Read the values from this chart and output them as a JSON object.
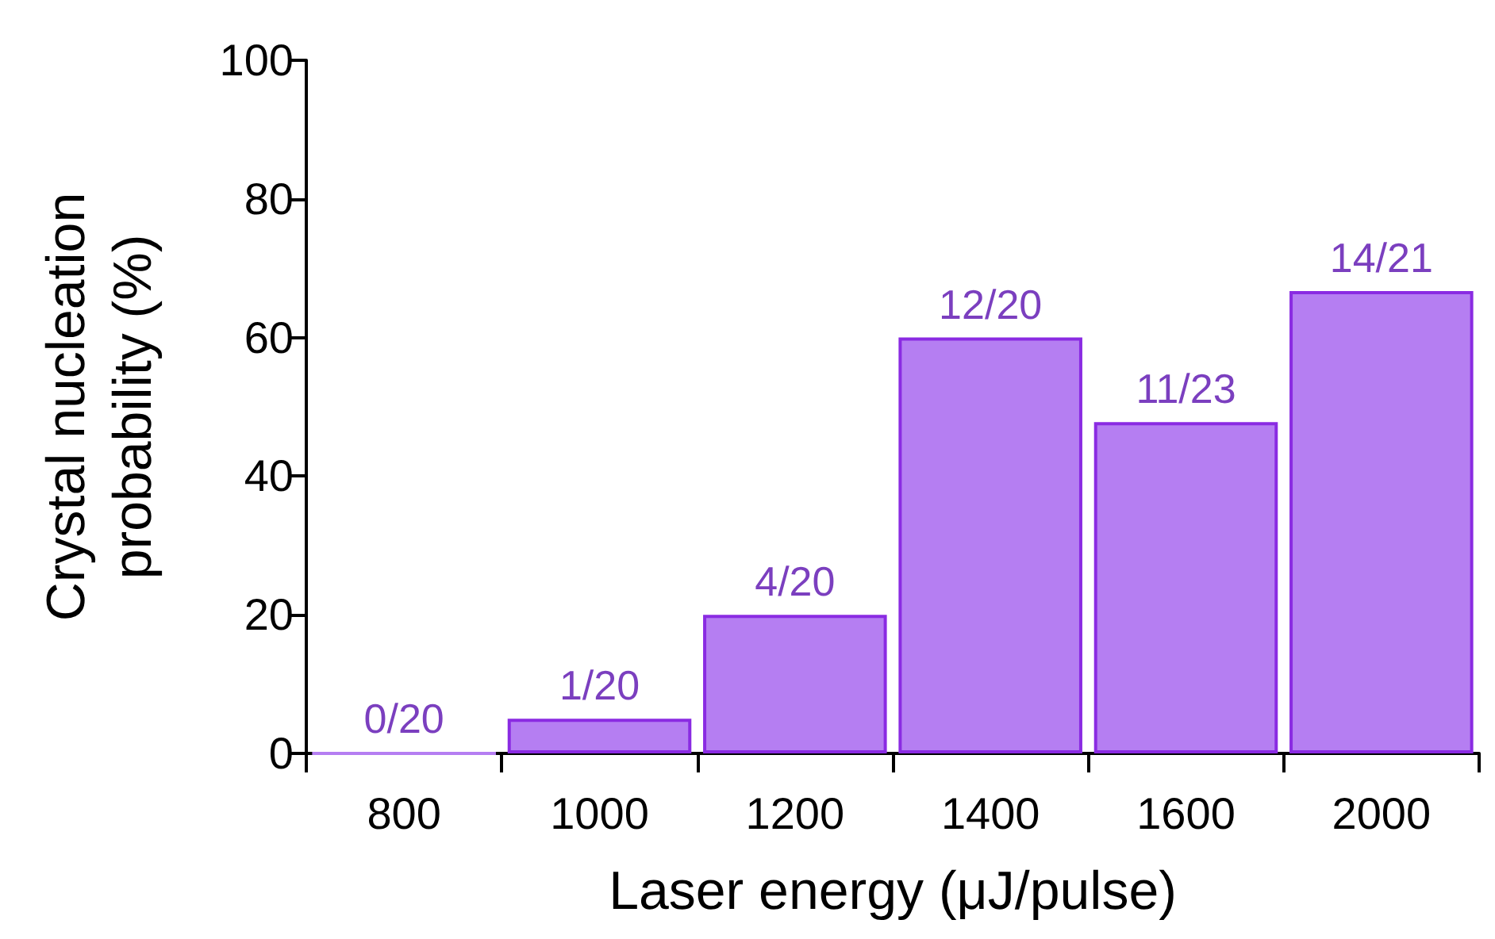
{
  "chart_data": {
    "type": "bar",
    "xlabel": "Laser energy (μJ/pulse)",
    "ylabel": "Crystal nucleation\nprobability (%)",
    "categories": [
      "800",
      "1000",
      "1200",
      "1400",
      "1600",
      "2000"
    ],
    "values": [
      0,
      5,
      20,
      60,
      47.8,
      66.7
    ],
    "value_labels": [
      "0/20",
      "1/20",
      "4/20",
      "12/20",
      "11/23",
      "14/21"
    ],
    "color": "#b57ef2",
    "ylim": [
      0,
      100
    ],
    "yticks": [
      0,
      20,
      40,
      60,
      80,
      100
    ],
    "grid": false
  }
}
